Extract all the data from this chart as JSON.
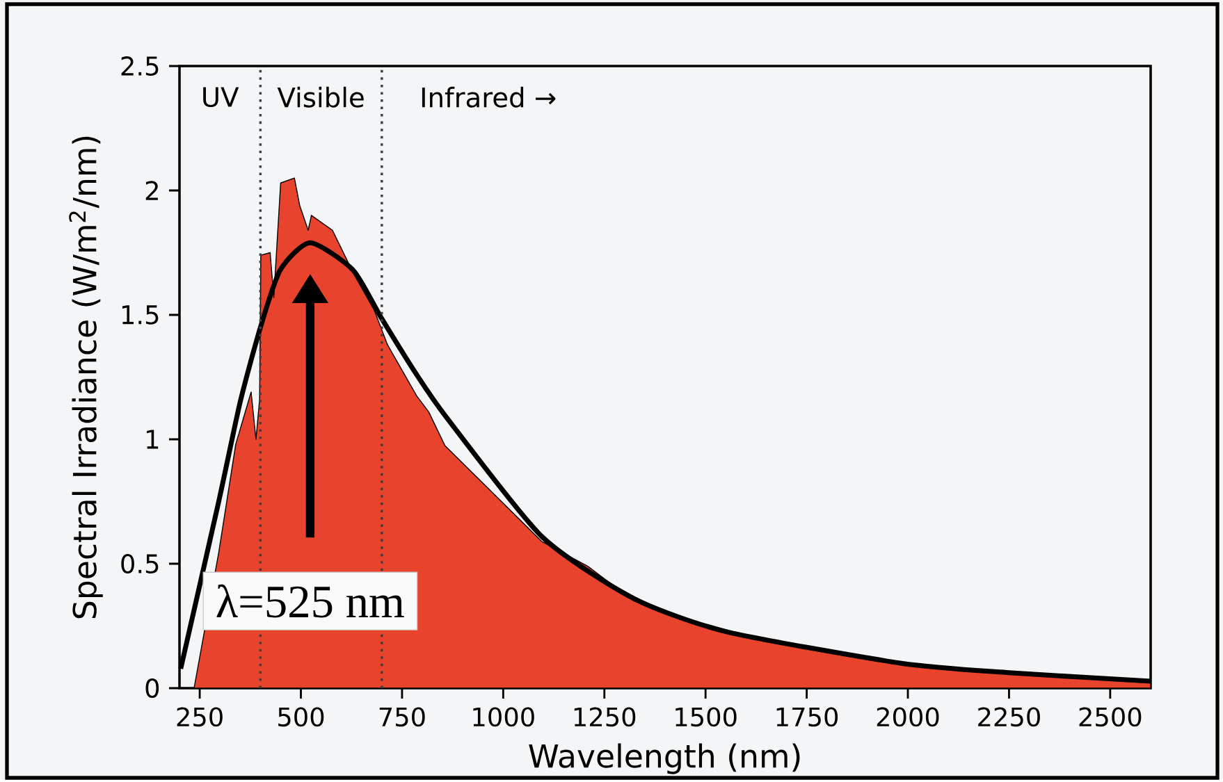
{
  "chart_data": {
    "type": "line",
    "xlabel": "Wavelength (nm)",
    "ylabel": "Spectral Irradiance (W/m$^{2}$/nm)",
    "xlim": [
      200,
      2600
    ],
    "ylim": [
      0,
      2.5
    ],
    "xticks": [
      250,
      500,
      750,
      1000,
      1250,
      1500,
      1750,
      2000,
      2250,
      2500
    ],
    "yticks": [
      0,
      0.5,
      1,
      1.5,
      2,
      2.5
    ],
    "grid": false,
    "series": [
      {
        "type": "area",
        "color": "#e8432d",
        "x": [
          236,
          297,
          339,
          377,
          389,
          398,
          401,
          424,
          433,
          450,
          484,
          497,
          518,
          526,
          578,
          629,
          681,
          714,
          786,
          816,
          856,
          1095,
          1209,
          1323,
          1554,
          1984,
          2250,
          2600
        ],
        "values": [
          0,
          0.545,
          0.98,
          1.19,
          1.0,
          1.16,
          1.74,
          1.75,
          1.57,
          2.03,
          2.05,
          1.94,
          1.84,
          1.9,
          1.84,
          1.67,
          1.52,
          1.38,
          1.175,
          1.11,
          0.975,
          0.59,
          0.49,
          0.35,
          0.22,
          0.097,
          0.06,
          0.027
        ]
      },
      {
        "color": "#000000",
        "x": [
          203,
          297,
          350,
          400,
          449,
          523,
          629,
          698,
          786,
          859,
          1095,
          1323,
          1554,
          1984,
          2250,
          2600
        ],
        "values": [
          0.078,
          0.75,
          1.15,
          1.45,
          1.68,
          1.79,
          1.68,
          1.49,
          1.26,
          1.09,
          0.61,
          0.36,
          0.226,
          0.1,
          0.062,
          0.028
        ]
      }
    ],
    "ref_lines": [
      {
        "axis": "x",
        "value": 400,
        "line_style": "dotted"
      },
      {
        "axis": "x",
        "value": 700,
        "line_style": "dotted"
      }
    ],
    "annotations": [
      "UV",
      "Visible",
      "Infrared →",
      "λ=525 nm"
    ]
  }
}
